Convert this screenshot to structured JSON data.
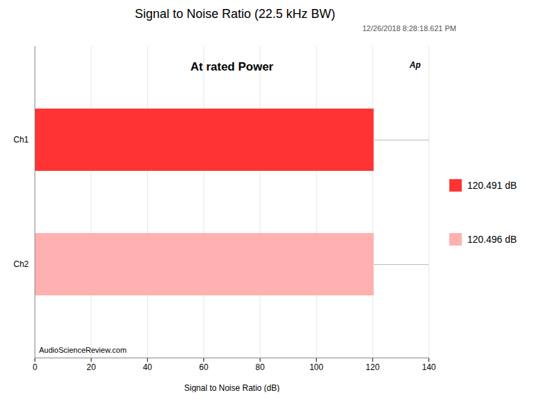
{
  "chart_data": {
    "type": "bar",
    "orientation": "horizontal",
    "title": "Signal to Noise Ratio (22.5 kHz BW)",
    "subtitle": "12/26/2018 8:28:18.621 PM",
    "annotations": [
      "At rated Power",
      "Ap",
      "AudioScienceReview.com"
    ],
    "xlabel": "Signal to Noise Ratio (dB)",
    "categories": [
      "Ch1",
      "Ch2"
    ],
    "series": [
      {
        "name": "120.491 dB",
        "color": "#FF3333",
        "values": [
          120.491,
          null
        ]
      },
      {
        "name": "120.496 dB",
        "color": "#FFB0B0",
        "values": [
          null,
          120.496
        ]
      }
    ],
    "xlim": [
      0,
      140
    ],
    "xticks": [
      0,
      20,
      40,
      60,
      80,
      100,
      120,
      140
    ],
    "grid": true,
    "legend": "right"
  }
}
